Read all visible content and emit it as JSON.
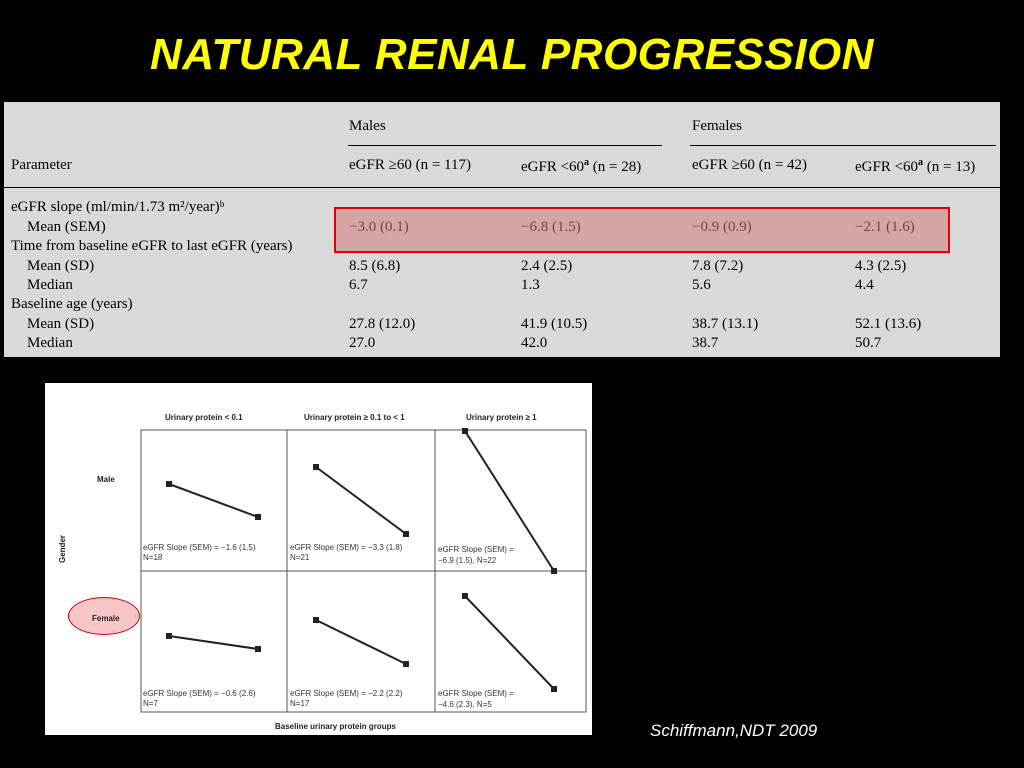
{
  "title": "NATURAL RENAL PROGRESSION",
  "table": {
    "group_males": "Males",
    "group_females": "Females",
    "col_parameter": "Parameter",
    "col_m1": "eGFR ≥60 (n = 117)",
    "col_m2_a": "eGFR <60",
    "col_m2_sup": "a",
    "col_m2_b": " (n = 28)",
    "col_f1": "eGFR ≥60 (n = 42)",
    "col_f2_a": "eGFR <60",
    "col_f2_sup": "a",
    "col_f2_b": " (n = 13)",
    "rows": [
      {
        "label": "eGFR slope (ml/min/1.73 m²/year)ᵇ",
        "values": [
          "",
          "",
          "",
          ""
        ]
      },
      {
        "label": "Mean (SEM)",
        "values": [
          "−3.0 (0.1)",
          "−6.8 (1.5)",
          "−0.9 (0.9)",
          "−2.1 (1.6)"
        ]
      },
      {
        "label": "Time from baseline eGFR to last eGFR (years)",
        "values": [
          "",
          "",
          "",
          ""
        ]
      },
      {
        "label": "Mean (SD)",
        "values": [
          "8.5 (6.8)",
          "2.4 (2.5)",
          "7.8 (7.2)",
          "4.3 (2.5)"
        ]
      },
      {
        "label": "Median",
        "values": [
          "6.7",
          "1.3",
          "5.6",
          "4.4"
        ]
      },
      {
        "label": "Baseline age (years)",
        "values": [
          "",
          "",
          "",
          ""
        ]
      },
      {
        "label": "Mean (SD)",
        "values": [
          "27.8 (12.0)",
          "41.9 (10.5)",
          "38.7 (13.1)",
          "52.1 (13.6)"
        ]
      },
      {
        "label": "Median",
        "values": [
          "27.0",
          "42.0",
          "38.7",
          "50.7"
        ]
      }
    ]
  },
  "figure": {
    "col_headers": [
      "Urinary protein < 0.1",
      "Urinary protein ≥ 0.1 to < 1",
      "Urinary protein ≥ 1"
    ],
    "row_headers": [
      "Male",
      "Female"
    ],
    "y_axis_label": "Gender",
    "x_axis_label": "Baseline urinary protein groups",
    "cells": [
      {
        "line1": "eGFR Slope (SEM) = −1.6 (1.5)",
        "line2": "N=18"
      },
      {
        "line1": "eGFR Slope (SEM) = −3.3 (1.8)",
        "line2": "N=21"
      },
      {
        "line1": "eGFR Slope (SEM) =",
        "line2": "−6.9 (1.5), N=22"
      },
      {
        "line1": "eGFR Slope (SEM) = −0.6 (2.6)",
        "line2": "N=7"
      },
      {
        "line1": "eGFR Slope (SEM) = −2.2 (2.2)",
        "line2": "N=17"
      },
      {
        "line1": "eGFR Slope (SEM) =",
        "line2": "−4.6 (2.3), N=5"
      }
    ]
  },
  "citation": "Schiffmann,NDT 2009",
  "colors": {
    "title": "#ffff00",
    "highlight_border": "#e00000",
    "background": "#000000",
    "table_bg": "#d9d9d9"
  }
}
